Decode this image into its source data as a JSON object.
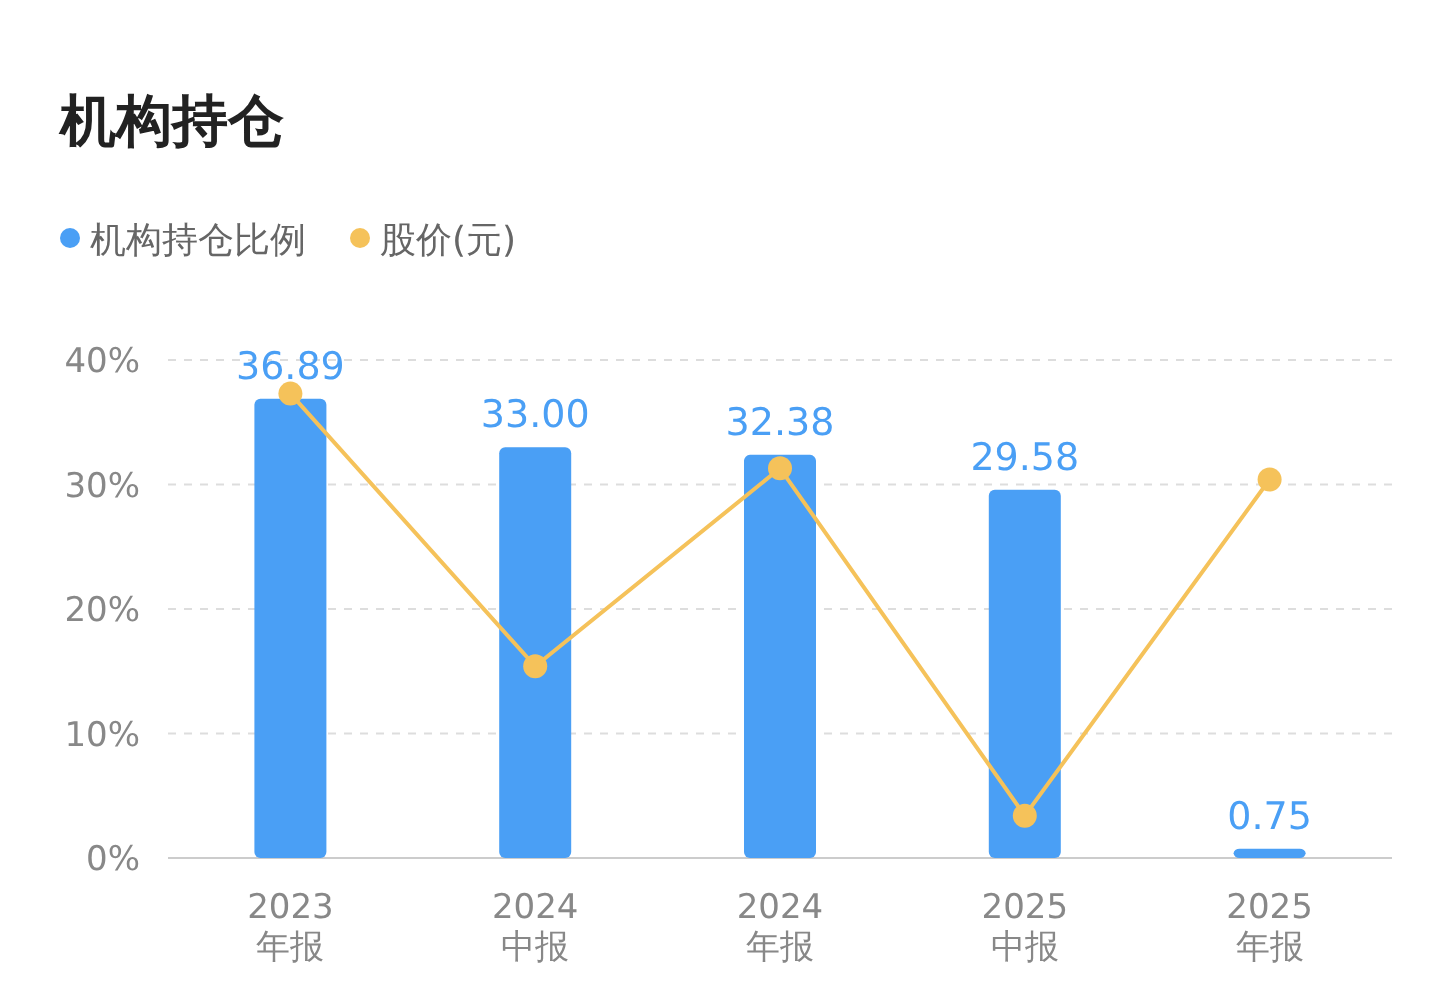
{
  "chart_data": {
    "type": "bar",
    "title": "机构持仓",
    "categories": [
      "2023 年报",
      "2024 中报",
      "2024 年报",
      "2025 中报",
      "2025 年报"
    ],
    "series": [
      {
        "name": "机构持仓比例",
        "color": "#4a9ff5",
        "values": [
          36.89,
          33.0,
          32.38,
          29.58,
          0.75
        ],
        "value_labels": [
          "36.89",
          "33.00",
          "32.38",
          "29.58",
          "0.75"
        ]
      },
      {
        "name": "股价(元)",
        "type": "line",
        "color": "#f5c25a",
        "marker": "circle",
        "values": [
          37.3,
          15.4,
          31.3,
          3.4,
          30.4
        ]
      }
    ],
    "ylim": [
      0,
      40
    ],
    "yticks": [
      {
        "value": 0,
        "label": "0%"
      },
      {
        "value": 10,
        "label": "10%"
      },
      {
        "value": 20,
        "label": "20%"
      },
      {
        "value": 30,
        "label": "30%"
      },
      {
        "value": 40,
        "label": "40%"
      }
    ],
    "grid": "y",
    "legend": "top left"
  }
}
